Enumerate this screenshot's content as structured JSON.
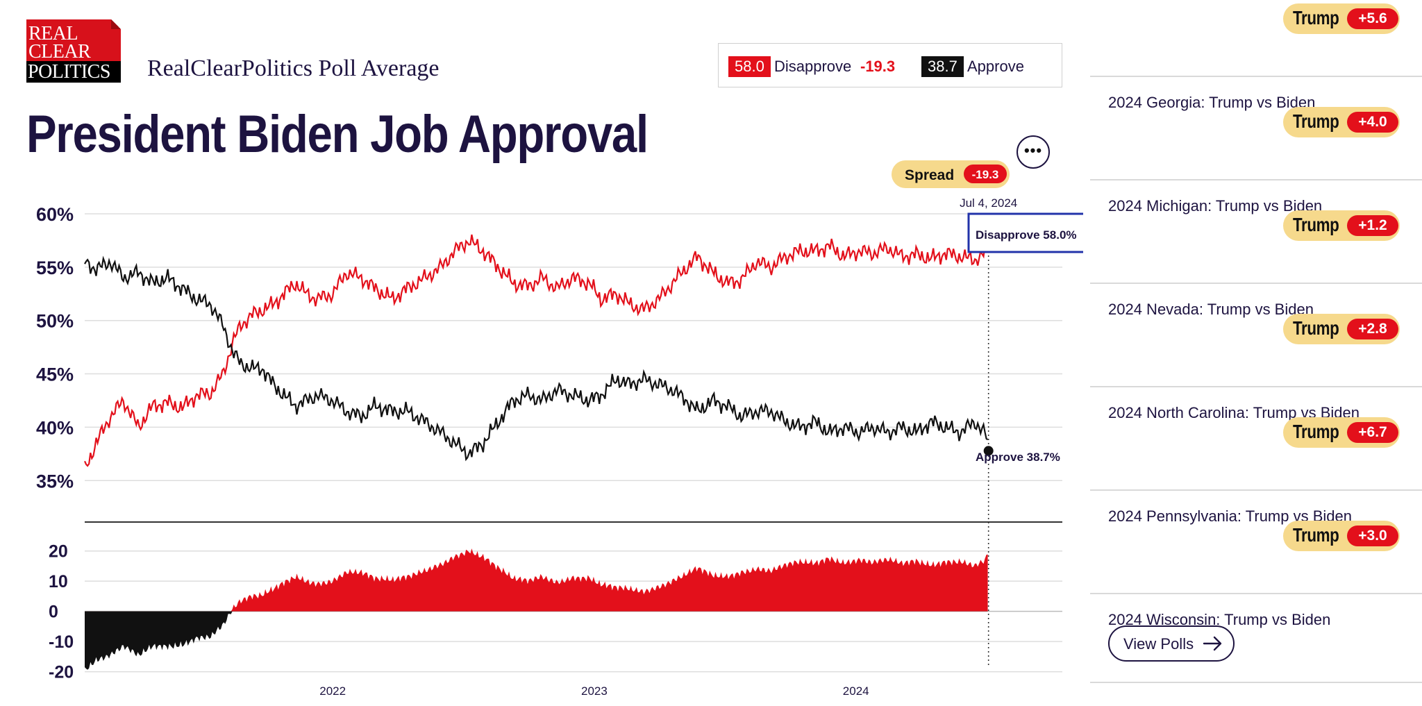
{
  "logo": {
    "line1": "REAL",
    "line2": "CLEAR",
    "line3": "POLITICS"
  },
  "brand_title": "RealClearPolitics Poll Average",
  "page_title": "President Biden Job Approval",
  "summary": {
    "disapprove_value": "58.0",
    "disapprove_label": "Disapprove",
    "spread": "-19.3",
    "approve_value": "38.7",
    "approve_label": "Approve"
  },
  "more_button_icon": "ellipsis-icon",
  "colors": {
    "disapprove": "#e3101b",
    "approve": "#111111",
    "navy": "#1d1340",
    "pill": "#f6d98c",
    "tooltip_border": "#2233aa"
  },
  "chart_data": [
    {
      "type": "line",
      "title": "",
      "x_ticks": [
        "2022",
        "2023",
        "2024"
      ],
      "y_ticks": [
        "60%",
        "55%",
        "50%",
        "45%",
        "40%",
        "35%"
      ],
      "ylim": [
        33,
        60
      ],
      "xlim": [
        "2021-01-20",
        "2024-10-15"
      ],
      "grid": true,
      "series": [
        {
          "name": "Disapprove",
          "color": "#e3101b",
          "points": [
            [
              "2021-01-20",
              36.0
            ],
            [
              "2021-02-05",
              38.5
            ],
            [
              "2021-02-25",
              41.0
            ],
            [
              "2021-03-15",
              42.5
            ],
            [
              "2021-04-05",
              40.0
            ],
            [
              "2021-04-25",
              42.0
            ],
            [
              "2021-05-15",
              42.3
            ],
            [
              "2021-06-05",
              41.8
            ],
            [
              "2021-06-25",
              43.0
            ],
            [
              "2021-07-15",
              43.2
            ],
            [
              "2021-08-01",
              45.0
            ],
            [
              "2021-08-15",
              48.0
            ],
            [
              "2021-08-25",
              49.5
            ],
            [
              "2021-09-10",
              50.5
            ],
            [
              "2021-09-25",
              51.0
            ],
            [
              "2021-10-10",
              51.5
            ],
            [
              "2021-10-25",
              52.5
            ],
            [
              "2021-11-10",
              53.5
            ],
            [
              "2021-11-25",
              52.5
            ],
            [
              "2021-12-10",
              52.0
            ],
            [
              "2022-01-01",
              52.5
            ],
            [
              "2022-01-20",
              54.5
            ],
            [
              "2022-02-10",
              54.0
            ],
            [
              "2022-03-01",
              53.0
            ],
            [
              "2022-03-25",
              52.0
            ],
            [
              "2022-04-15",
              53.0
            ],
            [
              "2022-05-10",
              54.0
            ],
            [
              "2022-06-01",
              55.0
            ],
            [
              "2022-06-20",
              56.5
            ],
            [
              "2022-07-10",
              57.5
            ],
            [
              "2022-07-30",
              56.5
            ],
            [
              "2022-08-20",
              55.0
            ],
            [
              "2022-09-10",
              53.5
            ],
            [
              "2022-10-01",
              53.2
            ],
            [
              "2022-10-20",
              54.0
            ],
            [
              "2022-11-10",
              53.0
            ],
            [
              "2022-12-01",
              54.0
            ],
            [
              "2022-12-25",
              53.5
            ],
            [
              "2023-01-10",
              52.0
            ],
            [
              "2023-02-01",
              52.5
            ],
            [
              "2023-02-20",
              51.5
            ],
            [
              "2023-03-10",
              51.0
            ],
            [
              "2023-04-01",
              52.0
            ],
            [
              "2023-04-20",
              53.5
            ],
            [
              "2023-05-10",
              55.0
            ],
            [
              "2023-05-25",
              56.0
            ],
            [
              "2023-06-15",
              54.5
            ],
            [
              "2023-07-05",
              53.5
            ],
            [
              "2023-07-25",
              53.8
            ],
            [
              "2023-08-15",
              55.5
            ],
            [
              "2023-09-05",
              55.0
            ],
            [
              "2023-09-25",
              56.0
            ],
            [
              "2023-10-15",
              56.5
            ],
            [
              "2023-11-05",
              56.5
            ],
            [
              "2023-11-25",
              57.0
            ],
            [
              "2023-12-15",
              56.0
            ],
            [
              "2024-01-05",
              56.5
            ],
            [
              "2024-01-25",
              56.3
            ],
            [
              "2024-02-15",
              56.8
            ],
            [
              "2024-03-05",
              56.0
            ],
            [
              "2024-03-25",
              56.2
            ],
            [
              "2024-04-15",
              55.8
            ],
            [
              "2024-05-05",
              56.3
            ],
            [
              "2024-05-25",
              56.0
            ],
            [
              "2024-06-15",
              55.7
            ],
            [
              "2024-06-28",
              56.2
            ],
            [
              "2024-07-04",
              58.0
            ]
          ]
        },
        {
          "name": "Approve",
          "color": "#111111",
          "points": [
            [
              "2021-01-20",
              55.5
            ],
            [
              "2021-02-05",
              54.8
            ],
            [
              "2021-02-25",
              55.5
            ],
            [
              "2021-03-15",
              54.0
            ],
            [
              "2021-04-05",
              54.5
            ],
            [
              "2021-04-25",
              53.5
            ],
            [
              "2021-05-15",
              54.0
            ],
            [
              "2021-06-05",
              53.0
            ],
            [
              "2021-06-25",
              52.0
            ],
            [
              "2021-07-15",
              51.5
            ],
            [
              "2021-08-01",
              49.5
            ],
            [
              "2021-08-15",
              47.0
            ],
            [
              "2021-08-25",
              46.0
            ],
            [
              "2021-09-10",
              45.5
            ],
            [
              "2021-09-25",
              45.5
            ],
            [
              "2021-10-10",
              44.0
            ],
            [
              "2021-10-25",
              43.0
            ],
            [
              "2021-11-10",
              42.0
            ],
            [
              "2021-11-25",
              42.5
            ],
            [
              "2021-12-10",
              43.0
            ],
            [
              "2022-01-01",
              42.5
            ],
            [
              "2022-01-20",
              41.5
            ],
            [
              "2022-02-10",
              41.0
            ],
            [
              "2022-03-01",
              42.0
            ],
            [
              "2022-03-25",
              41.5
            ],
            [
              "2022-04-15",
              41.5
            ],
            [
              "2022-05-10",
              40.5
            ],
            [
              "2022-06-01",
              39.5
            ],
            [
              "2022-06-20",
              38.5
            ],
            [
              "2022-07-10",
              37.5
            ],
            [
              "2022-07-30",
              38.5
            ],
            [
              "2022-08-20",
              40.5
            ],
            [
              "2022-09-10",
              42.5
            ],
            [
              "2022-10-01",
              43.0
            ],
            [
              "2022-10-20",
              42.5
            ],
            [
              "2022-11-10",
              43.5
            ],
            [
              "2022-12-01",
              43.0
            ],
            [
              "2022-12-25",
              42.5
            ],
            [
              "2023-01-10",
              43.0
            ],
            [
              "2023-02-01",
              44.5
            ],
            [
              "2023-02-20",
              44.0
            ],
            [
              "2023-03-10",
              44.5
            ],
            [
              "2023-04-01",
              44.0
            ],
            [
              "2023-04-20",
              43.5
            ],
            [
              "2023-05-10",
              42.5
            ],
            [
              "2023-05-25",
              41.5
            ],
            [
              "2023-06-15",
              42.5
            ],
            [
              "2023-07-05",
              42.0
            ],
            [
              "2023-07-25",
              41.0
            ],
            [
              "2023-08-15",
              41.5
            ],
            [
              "2023-09-05",
              41.5
            ],
            [
              "2023-09-25",
              40.5
            ],
            [
              "2023-10-15",
              40.0
            ],
            [
              "2023-11-05",
              40.5
            ],
            [
              "2023-11-25",
              39.5
            ],
            [
              "2023-12-15",
              40.0
            ],
            [
              "2024-01-05",
              39.5
            ],
            [
              "2024-01-25",
              40.0
            ],
            [
              "2024-02-15",
              39.5
            ],
            [
              "2024-03-05",
              40.0
            ],
            [
              "2024-03-25",
              39.5
            ],
            [
              "2024-04-15",
              40.5
            ],
            [
              "2024-05-05",
              40.0
            ],
            [
              "2024-05-25",
              39.5
            ],
            [
              "2024-06-15",
              40.5
            ],
            [
              "2024-06-28",
              39.5
            ],
            [
              "2024-07-04",
              38.7
            ]
          ]
        }
      ],
      "spread_pill": {
        "label": "Spread",
        "value": "-19.3"
      },
      "tooltip_date": "Jul 4, 2024",
      "tooltip_disapprove": "Disapprove 58.0%",
      "tooltip_approve": "Approve 38.7%"
    },
    {
      "type": "area",
      "title": "",
      "y_ticks": [
        "20",
        "10",
        "0",
        "-10",
        "-20"
      ],
      "ylim": [
        -21,
        22
      ],
      "note": "spread = disapprove minus approve; positive filled red, negative filled black",
      "positive_color": "#e3101b",
      "negative_color": "#111111"
    }
  ],
  "sidebar": {
    "races": [
      {
        "title": "",
        "leader": "Trump",
        "margin": "+5.6"
      },
      {
        "title": "2024 Georgia: Trump vs Biden",
        "leader": "Trump",
        "margin": "+4.0"
      },
      {
        "title": "2024 Michigan: Trump vs Biden",
        "leader": "Trump",
        "margin": "+1.2"
      },
      {
        "title": "2024 Nevada: Trump vs Biden",
        "leader": "Trump",
        "margin": "+2.8"
      },
      {
        "title": "2024 North Carolina: Trump vs Biden",
        "leader": "Trump",
        "margin": "+6.7"
      },
      {
        "title": "2024 Pennsylvania: Trump vs Biden",
        "leader": "Trump",
        "margin": "+3.0"
      },
      {
        "title": "2024 Wisconsin: Trump vs Biden",
        "leader": "",
        "margin": ""
      }
    ],
    "view_polls_label": "View Polls"
  }
}
